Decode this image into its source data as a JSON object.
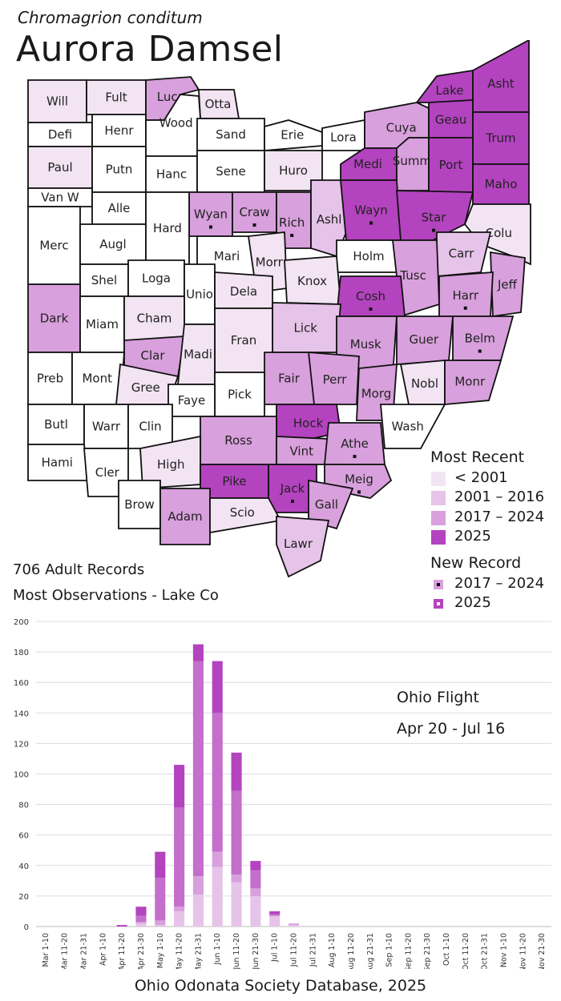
{
  "header": {
    "scientific_name": "Chromagrion conditum",
    "common_name": "Aurora Damsel"
  },
  "colors": {
    "lt2001": "#f2e4f3",
    "y2001_2016": "#e6c3e8",
    "y2017_2024": "#d8a0dc",
    "y2025": "#b443bf",
    "none": "#ffffff",
    "border": "#111111"
  },
  "map": {
    "counties": [
      {
        "name": "Will",
        "period": "lt2001"
      },
      {
        "name": "Fult",
        "period": "lt2001"
      },
      {
        "name": "Luca",
        "period": "2017-2024"
      },
      {
        "name": "Otta",
        "period": "lt2001"
      },
      {
        "name": "Lake",
        "period": "2025"
      },
      {
        "name": "Asht",
        "period": "2025"
      },
      {
        "name": "Defi",
        "period": "none"
      },
      {
        "name": "Henr",
        "period": "none"
      },
      {
        "name": "Wood",
        "period": "none"
      },
      {
        "name": "Sand",
        "period": "none"
      },
      {
        "name": "Erie",
        "period": "none"
      },
      {
        "name": "Lora",
        "period": "none"
      },
      {
        "name": "Cuya",
        "period": "2017-2024"
      },
      {
        "name": "Geau",
        "period": "2025"
      },
      {
        "name": "Trum",
        "period": "2025"
      },
      {
        "name": "Paul",
        "period": "lt2001"
      },
      {
        "name": "Putn",
        "period": "none"
      },
      {
        "name": "Hanc",
        "period": "none"
      },
      {
        "name": "Sene",
        "period": "none"
      },
      {
        "name": "Huro",
        "period": "lt2001"
      },
      {
        "name": "Medi",
        "period": "2025"
      },
      {
        "name": "Summ",
        "period": "2017-2024"
      },
      {
        "name": "Port",
        "period": "2025"
      },
      {
        "name": "Maho",
        "period": "2025"
      },
      {
        "name": "Van W",
        "period": "none"
      },
      {
        "name": "Alle",
        "period": "none"
      },
      {
        "name": "Wyan",
        "period": "2017-2024",
        "new_record": "2017-2024"
      },
      {
        "name": "Craw",
        "period": "2017-2024",
        "new_record": "2017-2024"
      },
      {
        "name": "Rich",
        "period": "2017-2024",
        "new_record": "2017-2024"
      },
      {
        "name": "Ashl",
        "period": "2001-2016"
      },
      {
        "name": "Wayn",
        "period": "2025",
        "new_record": "2025"
      },
      {
        "name": "Star",
        "period": "2025",
        "new_record": "2025"
      },
      {
        "name": "Colu",
        "period": "lt2001"
      },
      {
        "name": "Merc",
        "period": "none"
      },
      {
        "name": "Augl",
        "period": "none"
      },
      {
        "name": "Hard",
        "period": "none"
      },
      {
        "name": "Mari",
        "period": "none"
      },
      {
        "name": "Morr",
        "period": "lt2001"
      },
      {
        "name": "Holm",
        "period": "none"
      },
      {
        "name": "Knox",
        "period": "lt2001"
      },
      {
        "name": "Carr",
        "period": "2001-2016"
      },
      {
        "name": "Tusc",
        "period": "2017-2024"
      },
      {
        "name": "Jeff",
        "period": "2017-2024"
      },
      {
        "name": "Shel",
        "period": "none"
      },
      {
        "name": "Loga",
        "period": "none"
      },
      {
        "name": "Dark",
        "period": "2017-2024"
      },
      {
        "name": "Unio",
        "period": "none"
      },
      {
        "name": "Dela",
        "period": "lt2001"
      },
      {
        "name": "Cosh",
        "period": "2025",
        "new_record": "2025"
      },
      {
        "name": "Harr",
        "period": "2017-2024",
        "new_record": "2017-2024"
      },
      {
        "name": "Miam",
        "period": "none"
      },
      {
        "name": "Cham",
        "period": "lt2001"
      },
      {
        "name": "Lick",
        "period": "2001-2016"
      },
      {
        "name": "Fran",
        "period": "lt2001"
      },
      {
        "name": "Musk",
        "period": "2017-2024"
      },
      {
        "name": "Guer",
        "period": "2017-2024"
      },
      {
        "name": "Belm",
        "period": "2017-2024",
        "new_record": "2017-2024"
      },
      {
        "name": "Clar",
        "period": "2017-2024"
      },
      {
        "name": "Madi",
        "period": "lt2001"
      },
      {
        "name": "Preb",
        "period": "none"
      },
      {
        "name": "Mont",
        "period": "none"
      },
      {
        "name": "Gree",
        "period": "lt2001"
      },
      {
        "name": "Fair",
        "period": "2017-2024"
      },
      {
        "name": "Perr",
        "period": "2017-2024"
      },
      {
        "name": "Morg",
        "period": "2017-2024"
      },
      {
        "name": "Nobl",
        "period": "lt2001"
      },
      {
        "name": "Monr",
        "period": "2017-2024"
      },
      {
        "name": "Pick",
        "period": "none"
      },
      {
        "name": "Faye",
        "period": "none"
      },
      {
        "name": "Butl",
        "period": "none"
      },
      {
        "name": "Warr",
        "period": "none"
      },
      {
        "name": "Clin",
        "period": "none"
      },
      {
        "name": "Hock",
        "period": "2025"
      },
      {
        "name": "Wash",
        "period": "none"
      },
      {
        "name": "Ross",
        "period": "2017-2024"
      },
      {
        "name": "Vint",
        "period": "2017-2024"
      },
      {
        "name": "Athe",
        "period": "2017-2024",
        "new_record": "2017-2024"
      },
      {
        "name": "Hami",
        "period": "none"
      },
      {
        "name": "Cler",
        "period": "none"
      },
      {
        "name": "High",
        "period": "lt2001"
      },
      {
        "name": "Meig",
        "period": "2017-2024",
        "new_record": "2017-2024"
      },
      {
        "name": "Pike",
        "period": "2025"
      },
      {
        "name": "Jack",
        "period": "2025",
        "new_record": "2025"
      },
      {
        "name": "Brow",
        "period": "none"
      },
      {
        "name": "Adam",
        "period": "2017-2024"
      },
      {
        "name": "Scio",
        "period": "lt2001"
      },
      {
        "name": "Gall",
        "period": "2017-2024"
      },
      {
        "name": "Lawr",
        "period": "2001-2016"
      }
    ]
  },
  "legend": {
    "most_recent_title": "Most Recent",
    "most_recent_items": [
      "< 2001",
      "2001 – 2016",
      "2017 – 2024",
      "2025"
    ],
    "new_record_title": "New Record",
    "new_record_items": [
      "2017 – 2024",
      "2025"
    ]
  },
  "stats": {
    "records": "706 Adult Records",
    "most_observations": "Most Observations - Lake Co"
  },
  "flight": {
    "title": "Ohio Flight",
    "range": "Apr 20 - Jul 16"
  },
  "footer": "Ohio Odonata Society Database, 2025",
  "chart_data": {
    "type": "bar",
    "stacked": true,
    "categories": [
      "Mar 1-10",
      "Mar 11-20",
      "Mar 21-31",
      "Apr 1-10",
      "Apr 11-20",
      "Apr 21-30",
      "May 1-10",
      "May 11-20",
      "May 21-31",
      "Jun 1-10",
      "Jun 11-20",
      "Jun 21-30",
      "Jul 1-10",
      "Jul 11-20",
      "Jul 21-31",
      "Aug 1-10",
      "Aug 11-20",
      "Aug 21-31",
      "Sep 1-10",
      "Sep 11-20",
      "Sep 21-30",
      "Oct 1-10",
      "Oct 11-20",
      "Oct 21-31",
      "Nov 1-10",
      "Nov 11-20",
      "Nov 21-30"
    ],
    "series": [
      {
        "color": "#e6c3e8",
        "values": [
          0,
          0,
          0,
          0,
          0,
          2,
          1,
          10,
          21,
          39,
          29,
          20,
          7,
          1,
          0,
          0,
          0,
          0,
          0,
          0,
          0,
          0,
          0,
          0,
          0,
          0,
          0
        ]
      },
      {
        "color": "#d8a0dc",
        "values": [
          0,
          0,
          0,
          0,
          0,
          1,
          3,
          3,
          12,
          10,
          5,
          5,
          0,
          1,
          0,
          0,
          0,
          0,
          0,
          0,
          0,
          0,
          0,
          0,
          0,
          0,
          0
        ]
      },
      {
        "color": "#c46fcc",
        "values": [
          0,
          0,
          0,
          0,
          0,
          4,
          28,
          65,
          141,
          91,
          55,
          12,
          1,
          0,
          0,
          0,
          0,
          0,
          0,
          0,
          0,
          0,
          0,
          0,
          0,
          0,
          0
        ]
      },
      {
        "color": "#b443bf",
        "values": [
          0,
          0,
          0,
          0,
          1,
          6,
          17,
          28,
          11,
          34,
          25,
          6,
          2,
          0,
          0,
          0,
          0,
          0,
          0,
          0,
          0,
          0,
          0,
          0,
          0,
          0,
          0
        ]
      }
    ],
    "yticks": [
      "0",
      "20",
      "40",
      "60",
      "80",
      "100",
      "120",
      "140",
      "160",
      "180",
      "200"
    ],
    "ylim": [
      0,
      200
    ],
    "grid": true
  }
}
